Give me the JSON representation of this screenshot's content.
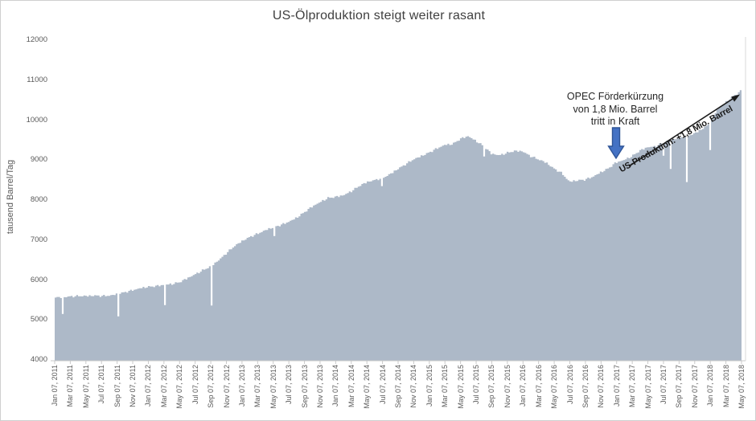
{
  "title": "US-Ölproduktion steigt weiter rasant",
  "y_axis": {
    "label": "tausend Barrel/Tag"
  },
  "annotations": {
    "opec": {
      "lines": [
        "OPEC Förderkürzung",
        "von 1,8 Mio. Barrel",
        "tritt in Kraft"
      ]
    },
    "trend": {
      "label": "US-Produktion: +1,8 Mio. Barrel"
    }
  },
  "colors": {
    "area_fill": "#adb9c8",
    "axis_line": "#c9c9c9",
    "plot_border": "#d9d9d9",
    "axis_text": "#595959",
    "title_text": "#404040",
    "down_arrow_fill": "#4472c4",
    "down_arrow_border": "#2f5597",
    "trend_arrow": "#1a1a1a"
  },
  "chart_data": {
    "type": "area",
    "title": "US-Ölproduktion steigt weiter rasant",
    "ylabel": "tausend Barrel/Tag",
    "ylim": [
      4000,
      12000
    ],
    "y_ticks": [
      4000,
      5000,
      6000,
      7000,
      8000,
      9000,
      10000,
      11000,
      12000
    ],
    "grid": false,
    "legend": false,
    "start_month": "2011-01",
    "end_month": "2018-05",
    "monthly_values": [
      5560,
      5570,
      5590,
      5600,
      5600,
      5610,
      5600,
      5610,
      5650,
      5700,
      5750,
      5800,
      5830,
      5850,
      5880,
      5900,
      5950,
      6050,
      6150,
      6250,
      6350,
      6500,
      6680,
      6850,
      6980,
      7080,
      7160,
      7250,
      7320,
      7380,
      7460,
      7560,
      7700,
      7840,
      7950,
      8050,
      8080,
      8120,
      8220,
      8350,
      8450,
      8500,
      8550,
      8650,
      8780,
      8900,
      9020,
      9100,
      9190,
      9290,
      9380,
      9400,
      9530,
      9600,
      9480,
      9350,
      9160,
      9120,
      9180,
      9230,
      9220,
      9100,
      9020,
      8940,
      8790,
      8680,
      8460,
      8490,
      8510,
      8580,
      8690,
      8790,
      8940,
      9000,
      9090,
      9230,
      9320,
      9340,
      9430,
      9510,
      9540,
      9590,
      9660,
      9770,
      9900,
      10270,
      10430,
      10590,
      10720
    ],
    "dip_events": [
      {
        "month": "2011-02",
        "value": 5150
      },
      {
        "month": "2011-09",
        "value": 5090
      },
      {
        "month": "2012-03",
        "value": 5370
      },
      {
        "month": "2012-09",
        "value": 5360
      },
      {
        "month": "2013-05",
        "value": 7100
      },
      {
        "month": "2014-07",
        "value": 8350
      },
      {
        "month": "2015-08",
        "value": 9090
      },
      {
        "month": "2017-07",
        "value": 9110
      },
      {
        "month": "2017-08",
        "value": 8780
      },
      {
        "month": "2017-10",
        "value": 8450
      },
      {
        "month": "2018-01",
        "value": 9250
      }
    ],
    "x_tick_labels": [
      "Jan 07, 2011",
      "Mar 07, 2011",
      "May 07, 2011",
      "Jul 07, 2011",
      "Sep 07, 2011",
      "Nov 07, 2011",
      "Jan 07, 2012",
      "Mar 07, 2012",
      "May 07, 2012",
      "Jul 07, 2012",
      "Sep 07, 2012",
      "Nov 07, 2012",
      "Jan 07, 2013",
      "Mar 07, 2013",
      "May 07, 2013",
      "Jul 07, 2013",
      "Sep 07, 2013",
      "Nov 07, 2013",
      "Jan 07, 2014",
      "Mar 07, 2014",
      "May 07, 2014",
      "Jul 07, 2014",
      "Sep 07, 2014",
      "Nov 07, 2014",
      "Jan 07, 2015",
      "Mar 07, 2015",
      "May 07, 2015",
      "Jul 07, 2015",
      "Sep 07, 2015",
      "Nov 07, 2015",
      "Jan 07, 2016",
      "Mar 07, 2016",
      "May 07, 2016",
      "Jul 07, 2016",
      "Sep 07, 2016",
      "Nov 07, 2016",
      "Jan 07, 2017",
      "Mar 07, 2017",
      "May 07, 2017",
      "Jul 07, 2017",
      "Sep 07, 2017",
      "Nov 07, 2017",
      "Jan 07, 2018",
      "Mar 07, 2018",
      "May 07, 2018"
    ]
  }
}
